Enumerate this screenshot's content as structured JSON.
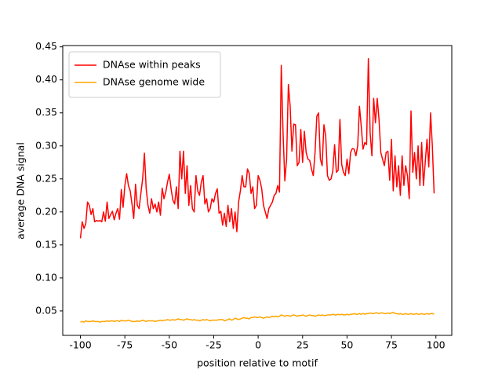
{
  "chart_data": {
    "type": "line",
    "xlabel": "position relative to motif",
    "ylabel": "average DNA signal",
    "x": [
      -100,
      -99,
      -98,
      -97,
      -96,
      -95,
      -94,
      -93,
      -92,
      -91,
      -90,
      -89,
      -88,
      -87,
      -86,
      -85,
      -84,
      -83,
      -82,
      -81,
      -80,
      -79,
      -78,
      -77,
      -76,
      -75,
      -74,
      -73,
      -72,
      -71,
      -70,
      -69,
      -68,
      -67,
      -66,
      -65,
      -64,
      -63,
      -62,
      -61,
      -60,
      -59,
      -58,
      -57,
      -56,
      -55,
      -54,
      -53,
      -52,
      -51,
      -50,
      -49,
      -48,
      -47,
      -46,
      -45,
      -44,
      -43,
      -42,
      -41,
      -40,
      -39,
      -38,
      -37,
      -36,
      -35,
      -34,
      -33,
      -32,
      -31,
      -30,
      -29,
      -28,
      -27,
      -26,
      -25,
      -24,
      -23,
      -22,
      -21,
      -20,
      -19,
      -18,
      -17,
      -16,
      -15,
      -14,
      -13,
      -12,
      -11,
      -10,
      -9,
      -8,
      -7,
      -6,
      -5,
      -4,
      -3,
      -2,
      -1,
      0,
      1,
      2,
      3,
      4,
      5,
      6,
      7,
      8,
      9,
      10,
      11,
      12,
      13,
      14,
      15,
      16,
      17,
      18,
      19,
      20,
      21,
      22,
      23,
      24,
      25,
      26,
      27,
      28,
      29,
      30,
      31,
      32,
      33,
      34,
      35,
      36,
      37,
      38,
      39,
      40,
      41,
      42,
      43,
      44,
      45,
      46,
      47,
      48,
      49,
      50,
      51,
      52,
      53,
      54,
      55,
      56,
      57,
      58,
      59,
      60,
      61,
      62,
      63,
      64,
      65,
      66,
      67,
      68,
      69,
      70,
      71,
      72,
      73,
      74,
      75,
      76,
      77,
      78,
      79,
      80,
      81,
      82,
      83,
      84,
      85,
      86,
      87,
      88,
      89,
      90,
      91,
      92,
      93,
      94,
      95,
      96,
      97,
      98,
      99
    ],
    "series": [
      {
        "name": "DNAse within peaks",
        "color": "#ff0000",
        "values": [
          0.16,
          0.185,
          0.175,
          0.182,
          0.215,
          0.21,
          0.196,
          0.205,
          0.185,
          0.187,
          0.186,
          0.187,
          0.185,
          0.2,
          0.186,
          0.215,
          0.19,
          0.196,
          0.201,
          0.188,
          0.198,
          0.205,
          0.189,
          0.234,
          0.207,
          0.24,
          0.258,
          0.24,
          0.232,
          0.212,
          0.19,
          0.242,
          0.21,
          0.205,
          0.228,
          0.25,
          0.289,
          0.235,
          0.21,
          0.198,
          0.22,
          0.205,
          0.212,
          0.2,
          0.215,
          0.195,
          0.236,
          0.22,
          0.23,
          0.245,
          0.257,
          0.235,
          0.218,
          0.212,
          0.238,
          0.205,
          0.292,
          0.25,
          0.292,
          0.228,
          0.27,
          0.21,
          0.24,
          0.205,
          0.2,
          0.255,
          0.232,
          0.225,
          0.245,
          0.255,
          0.212,
          0.22,
          0.2,
          0.205,
          0.22,
          0.215,
          0.228,
          0.235,
          0.198,
          0.201,
          0.18,
          0.198,
          0.178,
          0.21,
          0.185,
          0.205,
          0.175,
          0.2,
          0.17,
          0.215,
          0.232,
          0.255,
          0.238,
          0.238,
          0.265,
          0.258,
          0.228,
          0.238,
          0.205,
          0.21,
          0.255,
          0.248,
          0.235,
          0.21,
          0.2,
          0.19,
          0.205,
          0.21,
          0.215,
          0.225,
          0.228,
          0.24,
          0.23,
          0.422,
          0.32,
          0.247,
          0.28,
          0.393,
          0.36,
          0.292,
          0.333,
          0.332,
          0.27,
          0.275,
          0.325,
          0.275,
          0.322,
          0.29,
          0.28,
          0.278,
          0.265,
          0.255,
          0.29,
          0.345,
          0.35,
          0.28,
          0.27,
          0.332,
          0.315,
          0.255,
          0.248,
          0.25,
          0.262,
          0.302,
          0.26,
          0.263,
          0.34,
          0.272,
          0.26,
          0.255,
          0.28,
          0.258,
          0.29,
          0.296,
          0.295,
          0.285,
          0.3,
          0.36,
          0.33,
          0.295,
          0.305,
          0.302,
          0.432,
          0.32,
          0.285,
          0.372,
          0.335,
          0.372,
          0.34,
          0.29,
          0.28,
          0.27,
          0.29,
          0.292,
          0.248,
          0.31,
          0.232,
          0.285,
          0.238,
          0.27,
          0.225,
          0.285,
          0.24,
          0.27,
          0.255,
          0.22,
          0.353,
          0.26,
          0.29,
          0.25,
          0.3,
          0.24,
          0.305,
          0.24,
          0.275,
          0.31,
          0.268,
          0.35,
          0.3,
          0.228
        ]
      },
      {
        "name": "DNAse genome wide",
        "color": "#ffa500",
        "values": [
          0.033,
          0.034,
          0.033,
          0.035,
          0.034,
          0.034,
          0.034,
          0.035,
          0.034,
          0.034,
          0.034,
          0.033,
          0.034,
          0.034,
          0.034,
          0.035,
          0.034,
          0.035,
          0.035,
          0.034,
          0.035,
          0.035,
          0.034,
          0.036,
          0.035,
          0.035,
          0.035,
          0.036,
          0.035,
          0.034,
          0.034,
          0.034,
          0.035,
          0.034,
          0.035,
          0.036,
          0.035,
          0.034,
          0.035,
          0.035,
          0.035,
          0.035,
          0.034,
          0.035,
          0.035,
          0.036,
          0.035,
          0.036,
          0.036,
          0.037,
          0.036,
          0.036,
          0.037,
          0.036,
          0.037,
          0.038,
          0.037,
          0.037,
          0.036,
          0.037,
          0.038,
          0.037,
          0.037,
          0.036,
          0.037,
          0.036,
          0.036,
          0.035,
          0.036,
          0.037,
          0.036,
          0.037,
          0.036,
          0.035,
          0.036,
          0.036,
          0.036,
          0.036,
          0.037,
          0.037,
          0.037,
          0.035,
          0.036,
          0.037,
          0.038,
          0.036,
          0.037,
          0.039,
          0.038,
          0.037,
          0.038,
          0.039,
          0.04,
          0.039,
          0.039,
          0.038,
          0.04,
          0.04,
          0.041,
          0.04,
          0.04,
          0.041,
          0.04,
          0.039,
          0.04,
          0.041,
          0.04,
          0.041,
          0.042,
          0.041,
          0.042,
          0.041,
          0.042,
          0.044,
          0.043,
          0.042,
          0.043,
          0.043,
          0.042,
          0.043,
          0.044,
          0.043,
          0.042,
          0.043,
          0.043,
          0.044,
          0.043,
          0.042,
          0.043,
          0.044,
          0.043,
          0.043,
          0.042,
          0.043,
          0.044,
          0.043,
          0.044,
          0.043,
          0.043,
          0.044,
          0.044,
          0.044,
          0.045,
          0.044,
          0.044,
          0.045,
          0.044,
          0.045,
          0.044,
          0.044,
          0.045,
          0.044,
          0.045,
          0.045,
          0.046,
          0.045,
          0.045,
          0.046,
          0.045,
          0.046,
          0.045,
          0.046,
          0.046,
          0.047,
          0.046,
          0.046,
          0.047,
          0.047,
          0.046,
          0.047,
          0.047,
          0.046,
          0.046,
          0.047,
          0.046,
          0.047,
          0.048,
          0.046,
          0.046,
          0.045,
          0.046,
          0.045,
          0.045,
          0.046,
          0.045,
          0.045,
          0.046,
          0.045,
          0.045,
          0.046,
          0.045,
          0.045,
          0.046,
          0.045,
          0.045,
          0.046,
          0.045,
          0.046,
          0.046,
          0.045
        ]
      }
    ],
    "xlim": [
      -109.95,
      108.95
    ],
    "xticks": [
      -100,
      -75,
      -50,
      -25,
      0,
      25,
      50,
      75,
      100
    ],
    "ylim": [
      0.013,
      0.452
    ],
    "yticks": [
      0.05,
      {
        "value": 0.1,
        "label": "0.10"
      },
      0.15,
      {
        "value": 0.2,
        "label": "0.20"
      },
      0.25,
      {
        "value": 0.3,
        "label": "0.30"
      },
      0.35,
      {
        "value": 0.4,
        "label": "0.40"
      },
      0.45
    ],
    "legend": "upper left",
    "grid": false
  }
}
